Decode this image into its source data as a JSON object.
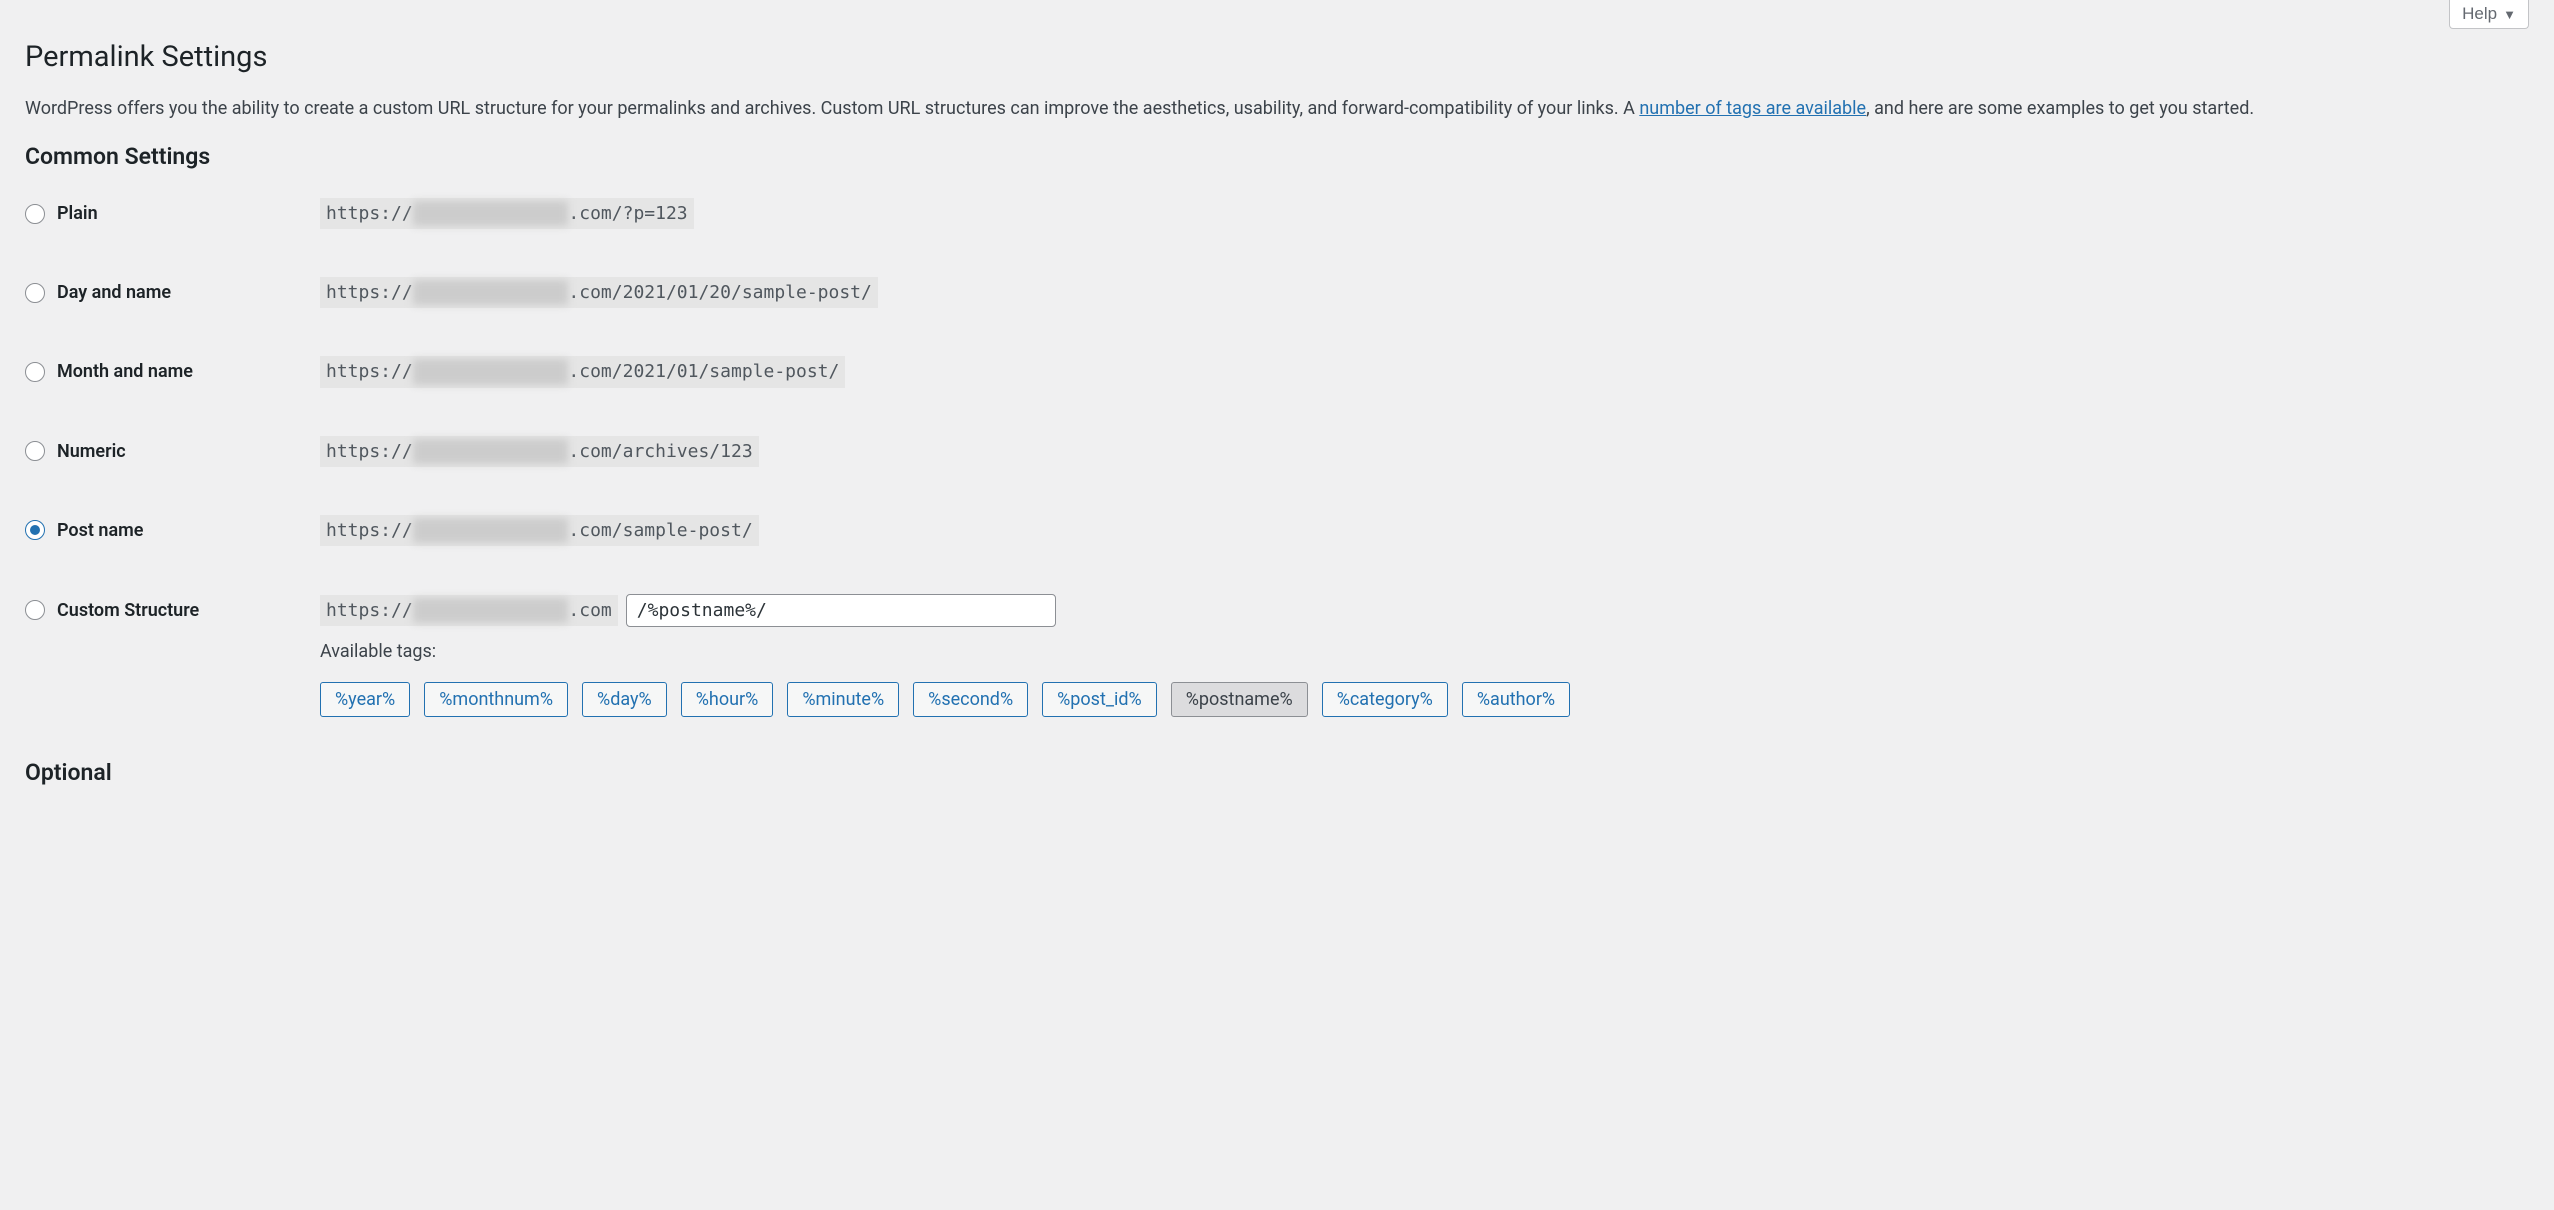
{
  "help_button": "Help",
  "page_title": "Permalink Settings",
  "intro_text_pre": "WordPress offers you the ability to create a custom URL structure for your permalinks and archives. Custom URL structures can improve the aesthetics, usability, and forward-compatibility of your links. A ",
  "intro_link": "number of tags are available",
  "intro_text_post": ", and here are some examples to get you started.",
  "common_heading": "Common Settings",
  "url_prefix": "https://",
  "blurred_domain": "xxxxxxxxxxxxxx",
  "url_tld": ".com",
  "options": [
    {
      "key": "plain",
      "label": "Plain",
      "suffix": "/?p=123",
      "checked": false
    },
    {
      "key": "day_name",
      "label": "Day and name",
      "suffix": "/2021/01/20/sample-post/",
      "checked": false
    },
    {
      "key": "month_name",
      "label": "Month and name",
      "suffix": "/2021/01/sample-post/",
      "checked": false
    },
    {
      "key": "numeric",
      "label": "Numeric",
      "suffix": "/archives/123",
      "checked": false
    },
    {
      "key": "post_name",
      "label": "Post name",
      "suffix": "/sample-post/",
      "checked": true
    }
  ],
  "custom_option": {
    "label": "Custom Structure",
    "checked": false
  },
  "custom_input_value": "/%postname%/",
  "available_tags_label": "Available tags:",
  "tags": [
    {
      "label": "%year%",
      "active": false
    },
    {
      "label": "%monthnum%",
      "active": false
    },
    {
      "label": "%day%",
      "active": false
    },
    {
      "label": "%hour%",
      "active": false
    },
    {
      "label": "%minute%",
      "active": false
    },
    {
      "label": "%second%",
      "active": false
    },
    {
      "label": "%post_id%",
      "active": false
    },
    {
      "label": "%postname%",
      "active": true
    },
    {
      "label": "%category%",
      "active": false
    },
    {
      "label": "%author%",
      "active": false
    }
  ],
  "optional_heading": "Optional",
  "colors": {
    "background": "#f0f0f1",
    "text_primary": "#1d2327",
    "text_body": "#3c434a",
    "link": "#2271b1",
    "code_bg": "#e5e5e5",
    "code_text": "#50575e",
    "tag_border": "#2271b1",
    "tag_bg": "#f6f7f7",
    "tag_active_bg": "#dcdcde",
    "input_border": "#8c8f94"
  }
}
